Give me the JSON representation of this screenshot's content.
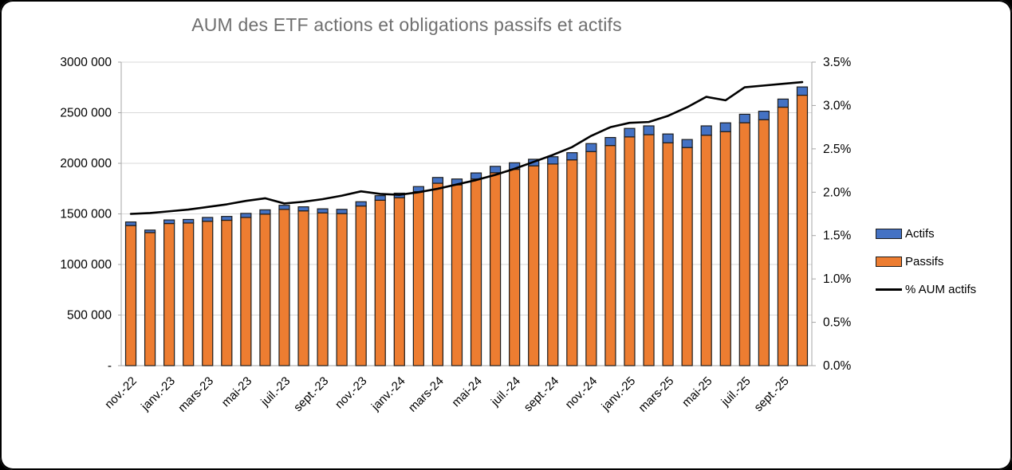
{
  "title": "AUM des ETF actions et obligations passifs et actifs",
  "legend": {
    "items": [
      {
        "label": "Actifs",
        "swatch": "blue-box"
      },
      {
        "label": "Passifs",
        "swatch": "orange-box"
      },
      {
        "label": "% AUM actifs",
        "swatch": "black-line"
      }
    ]
  },
  "colors": {
    "actifs": "#4472C4",
    "passifs": "#ED7D31",
    "pct_line": "#000000",
    "bar_border": "#1c1c1c",
    "gridline": "#d9d9d9",
    "axis_line": "#a6a6a6",
    "title_text": "#6f6f6f"
  },
  "chart_data": {
    "type": "bar",
    "subtype": "stacked-bars-with-line",
    "title": "AUM des ETF actions et obligations passifs et actifs",
    "categories": [
      "nov.-22",
      "déc.-22",
      "janv.-23",
      "févr.-23",
      "mars-23",
      "avr.-23",
      "mai-23",
      "juin-23",
      "juil.-23",
      "août-23",
      "sept.-23",
      "oct.-23",
      "nov.-23",
      "déc.-23",
      "janv.-24",
      "févr.-24",
      "mars-24",
      "avr.-24",
      "mai-24",
      "juin-24",
      "juil.-24",
      "août-24",
      "sept.-24",
      "oct.-24",
      "nov.-24",
      "déc.-24",
      "janv.-25",
      "févr.-25",
      "mars-25",
      "avr.-25",
      "mai-25",
      "juin-25",
      "juil.-25",
      "août-25",
      "sept.-25",
      "oct.-25"
    ],
    "x_tick_labels_shown": [
      "nov.-22",
      "janv.-23",
      "mars-23",
      "mai-23",
      "juil.-23",
      "sept.-23",
      "nov.-23",
      "janv.-24",
      "mars-24",
      "mai-24",
      "juil.-24",
      "sept.-24",
      "nov.-24",
      "janv.-25",
      "mars-25",
      "mai-25",
      "juil.-25",
      "sept.-25"
    ],
    "series": [
      {
        "name": "Passifs",
        "kind": "bar-stack-bottom",
        "axis": "left",
        "values": [
          1385000,
          1315000,
          1405000,
          1410000,
          1427000,
          1437000,
          1465000,
          1498000,
          1545000,
          1530000,
          1510000,
          1503000,
          1578000,
          1635000,
          1660000,
          1720000,
          1803000,
          1787000,
          1845000,
          1907000,
          1940000,
          1975000,
          1993000,
          2034000,
          2116000,
          2176000,
          2261000,
          2283000,
          2203000,
          2156000,
          2278000,
          2313000,
          2401000,
          2431000,
          2555000,
          2673000
        ]
      },
      {
        "name": "Actifs",
        "kind": "bar-stack-top",
        "axis": "left",
        "values": [
          35000,
          25000,
          35000,
          35000,
          38000,
          38000,
          40000,
          42000,
          40000,
          40000,
          40000,
          42000,
          42000,
          45000,
          45000,
          50000,
          57000,
          58000,
          60000,
          63000,
          65000,
          65000,
          72000,
          71000,
          79000,
          79000,
          84000,
          87000,
          87000,
          79000,
          92000,
          87000,
          84000,
          84000,
          80000,
          82000
        ]
      },
      {
        "name": "% AUM actifs",
        "kind": "line",
        "axis": "right",
        "values": [
          1.75,
          1.76,
          1.78,
          1.8,
          1.83,
          1.86,
          1.9,
          1.93,
          1.87,
          1.89,
          1.92,
          1.96,
          2.01,
          1.98,
          1.97,
          2.0,
          2.04,
          2.09,
          2.14,
          2.2,
          2.27,
          2.35,
          2.43,
          2.52,
          2.65,
          2.75,
          2.8,
          2.81,
          2.88,
          2.98,
          3.1,
          3.06,
          3.21,
          3.23,
          3.25,
          3.27
        ]
      }
    ],
    "left_axis": {
      "min": 0,
      "max": 3000000,
      "step": 500000,
      "tick_labels": [
        "3000 000",
        "2500 000",
        "2000 000",
        "1500 000",
        "1000 000",
        "500 000",
        "-"
      ]
    },
    "right_axis": {
      "min": 0,
      "max": 3.5,
      "step": 0.5,
      "tick_labels": [
        "3.5%",
        "3.0%",
        "2.5%",
        "2.0%",
        "1.5%",
        "1.0%",
        "0.5%",
        "0.0%"
      ]
    },
    "grid": "horizontal-only",
    "legend_position": "right"
  }
}
